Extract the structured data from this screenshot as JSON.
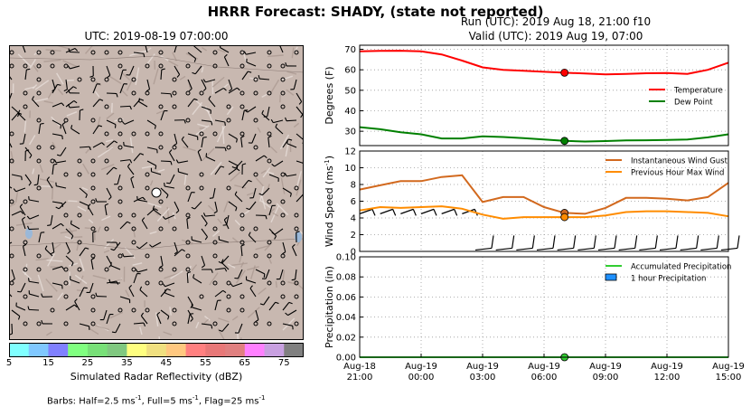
{
  "header": {
    "title": "HRRR Forecast: SHADY, (state not reported)",
    "run": "Run (UTC): 2019 Aug 18, 21:00 f10",
    "valid": "Valid (UTC): 2019 Aug 19, 07:00"
  },
  "map": {
    "title": "UTC: 2019-08-19 07:00:00",
    "colorbar_title": "Simulated Radar Reflectivity (dBZ)",
    "colorbar_ticks": [
      "5",
      "15",
      "25",
      "35",
      "45",
      "55",
      "65",
      "75"
    ],
    "colorbar_colors": [
      "#80ffff",
      "#80c8ff",
      "#8080ff",
      "#80ff80",
      "#78e078",
      "#80c880",
      "#ffff80",
      "#f0e080",
      "#ffc880",
      "#ff8080",
      "#e87878",
      "#e08080",
      "#ff80ff",
      "#c8a0e0",
      "#808080"
    ],
    "barbs_note": "Barbs: Half=2.5 ms",
    "barbs_note_mid": ", Full=5 ms",
    "barbs_note_end": ", Flag=25 ms",
    "unit_sup": "-1",
    "terrain_color": "#c8b8b0"
  },
  "chart_data": [
    {
      "type": "line",
      "name": "temperature",
      "ylabel": "Degrees (F)",
      "ylim": [
        23,
        72
      ],
      "yticks": [
        30,
        40,
        50,
        60,
        70
      ],
      "x": [
        0,
        1,
        2,
        3,
        4,
        5,
        6,
        7,
        8,
        9,
        10,
        11,
        12,
        13,
        14,
        15,
        16,
        17,
        18
      ],
      "series": [
        {
          "name": "Temperature",
          "color": "#ff0000",
          "values": [
            69,
            69.2,
            69.3,
            69,
            67.5,
            64.5,
            61.2,
            60,
            59.5,
            59,
            58.6,
            58.2,
            57.8,
            58,
            58.3,
            58.4,
            58,
            60,
            63.5
          ]
        },
        {
          "name": "Dew Point",
          "color": "#008000",
          "values": [
            32,
            31,
            29.5,
            28.5,
            26.5,
            26.5,
            27.5,
            27.2,
            26.6,
            26,
            25.3,
            25,
            25.2,
            25.5,
            25.6,
            25.8,
            26,
            27,
            28.5
          ]
        }
      ],
      "marker_x": 10,
      "legend_position": "right"
    },
    {
      "type": "line",
      "name": "wind",
      "ylabel": "Wind Speed (ms",
      "ylabel_sup": "-1",
      "ylabel_end": ")",
      "ylim": [
        0,
        12
      ],
      "yticks": [
        0,
        2,
        4,
        6,
        8,
        10,
        12
      ],
      "x": [
        0,
        1,
        2,
        3,
        4,
        5,
        6,
        7,
        8,
        9,
        10,
        11,
        12,
        13,
        14,
        15,
        16,
        17,
        18
      ],
      "series": [
        {
          "name": "Instantaneous Wind Gust",
          "color": "#d2691e",
          "values": [
            7.4,
            7.9,
            8.4,
            8.4,
            8.9,
            9.1,
            5.9,
            6.5,
            6.5,
            5.3,
            4.6,
            4.5,
            5.2,
            6.4,
            6.4,
            6.3,
            6.1,
            6.5,
            8.2
          ]
        },
        {
          "name": "Previous Hour Max Wind",
          "color": "#ff8c00",
          "values": [
            4.9,
            5.3,
            5.2,
            5.3,
            5.4,
            5.1,
            4.4,
            3.9,
            4.1,
            4.1,
            4.1,
            4.1,
            4.3,
            4.7,
            4.8,
            4.8,
            4.7,
            4.6,
            4.2
          ]
        }
      ],
      "marker_x": 10,
      "legend_position": "top-right"
    },
    {
      "type": "line",
      "name": "precipitation",
      "ylabel": "Precipitation (in)",
      "ylim": [
        0,
        0.1
      ],
      "yticks": [
        "0.00",
        "0.02",
        "0.04",
        "0.06",
        "0.08",
        "0.10"
      ],
      "x": [
        0,
        1,
        2,
        3,
        4,
        5,
        6,
        7,
        8,
        9,
        10,
        11,
        12,
        13,
        14,
        15,
        16,
        17,
        18
      ],
      "series": [
        {
          "name": "Accumulated Precipitation",
          "color": "#32cd32",
          "values": [
            0,
            0,
            0,
            0,
            0,
            0,
            0,
            0,
            0,
            0,
            0,
            0,
            0,
            0,
            0,
            0,
            0,
            0,
            0
          ]
        },
        {
          "name": "1 hour Precipitation",
          "color": "#1e90ff",
          "kind": "bar",
          "values": [
            0,
            0,
            0,
            0,
            0,
            0,
            0,
            0,
            0,
            0,
            0,
            0,
            0,
            0,
            0,
            0,
            0,
            0,
            0
          ]
        }
      ],
      "marker_x": 10,
      "legend_position": "top-right"
    }
  ],
  "xaxis": {
    "ticks": [
      {
        "x": 0,
        "line1": "Aug-18",
        "line2": "21:00"
      },
      {
        "x": 3,
        "line1": "Aug-19",
        "line2": "00:00"
      },
      {
        "x": 6,
        "line1": "Aug-19",
        "line2": "03:00"
      },
      {
        "x": 9,
        "line1": "Aug-19",
        "line2": "06:00"
      },
      {
        "x": 12,
        "line1": "Aug-19",
        "line2": "09:00"
      },
      {
        "x": 15,
        "line1": "Aug-19",
        "line2": "12:00"
      },
      {
        "x": 18,
        "line1": "Aug-19",
        "line2": "15:00"
      }
    ]
  }
}
